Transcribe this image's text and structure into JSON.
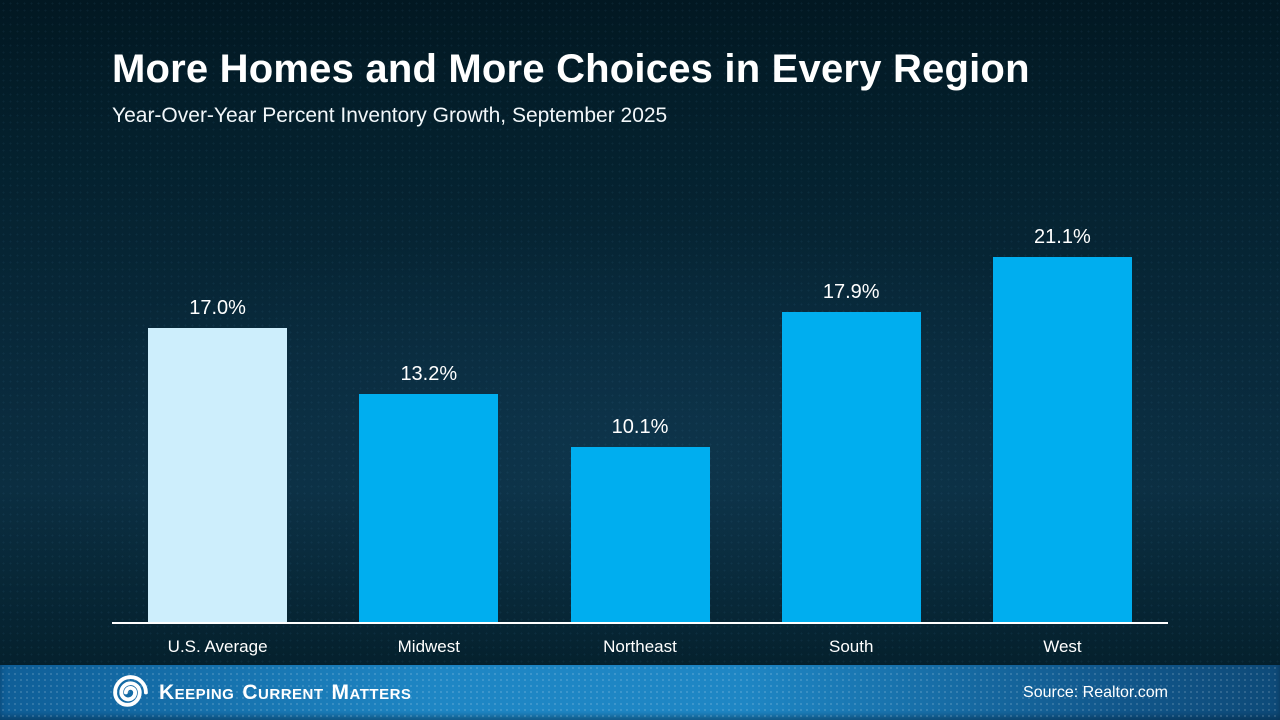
{
  "header": {
    "title": "More Homes and More Choices in Every Region",
    "subtitle": "Year-Over-Year Percent Inventory Growth, September 2025"
  },
  "chart_data": {
    "type": "bar",
    "title": "More Homes and More Choices in Every Region",
    "subtitle": "Year-Over-Year Percent Inventory Growth, September 2025",
    "categories": [
      "U.S. Average",
      "Midwest",
      "Northeast",
      "South",
      "West"
    ],
    "values": [
      17.0,
      13.2,
      10.1,
      17.9,
      21.1
    ],
    "value_labels": [
      "17.0%",
      "13.2%",
      "10.1%",
      "17.9%",
      "21.1%"
    ],
    "bar_colors": [
      "#cdeefc",
      "#00aeef",
      "#00aeef",
      "#00aeef",
      "#00aeef"
    ],
    "xlabel": "",
    "ylabel": "",
    "ylim": [
      0,
      25.5
    ],
    "grid": false,
    "legend_position": "none",
    "axis_line_color": "#ffffff",
    "label_color": "#ffffff"
  },
  "colors": {
    "background_dark": "#04212e",
    "background_mid": "#0b2e41",
    "bar_highlight": "#cdeefc",
    "bar_primary": "#00aeef",
    "footer_gradient_left": "#0f5e97",
    "footer_gradient_mid": "#1e86c4",
    "footer_gradient_right": "#0e4a78",
    "text": "#ffffff"
  },
  "footer": {
    "logo_icon": "kcm-swirl-icon",
    "logo_words": [
      "Keeping",
      "Current",
      "Matters"
    ],
    "source_label": "Source: Realtor.com"
  }
}
